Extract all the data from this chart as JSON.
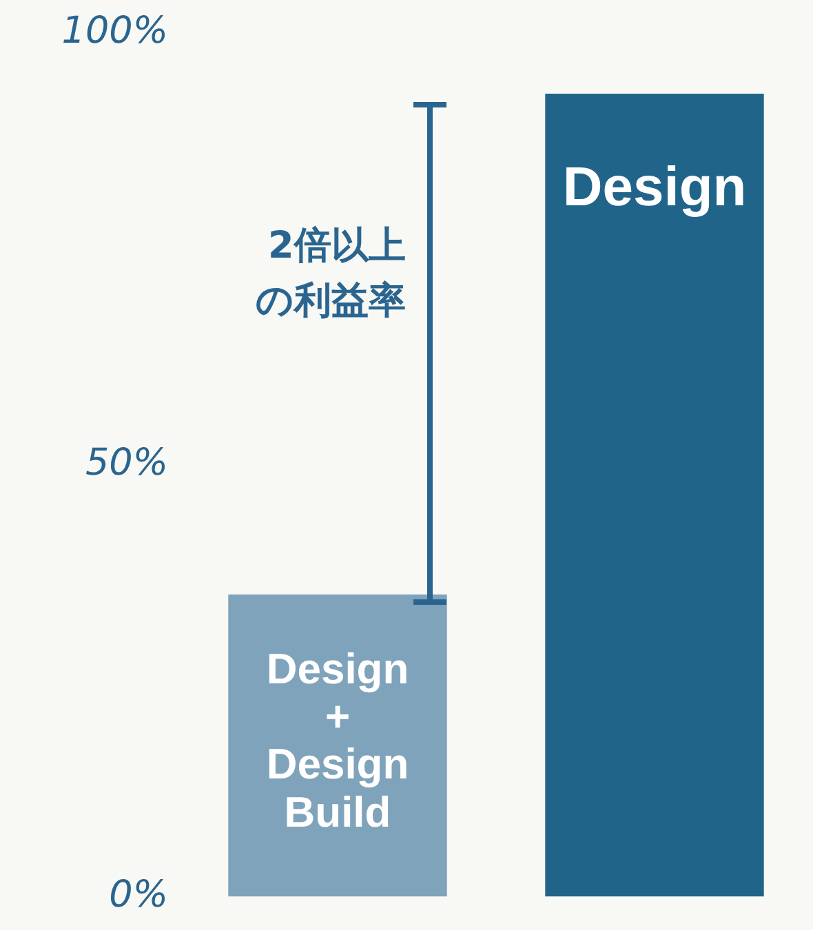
{
  "chart_data": {
    "type": "bar",
    "categories": [
      "Design + Design Build",
      "Design"
    ],
    "values": [
      35,
      93
    ],
    "colors": [
      "#7fa3bb",
      "#20648a"
    ],
    "ylim": [
      0,
      100
    ],
    "yticks": [
      {
        "value": 0,
        "label": "0%"
      },
      {
        "value": 50,
        "label": "50%"
      },
      {
        "value": 100,
        "label": "100%"
      }
    ],
    "grid": false,
    "legend": false,
    "annotations": [
      "2倍以上の利益率"
    ]
  }
}
